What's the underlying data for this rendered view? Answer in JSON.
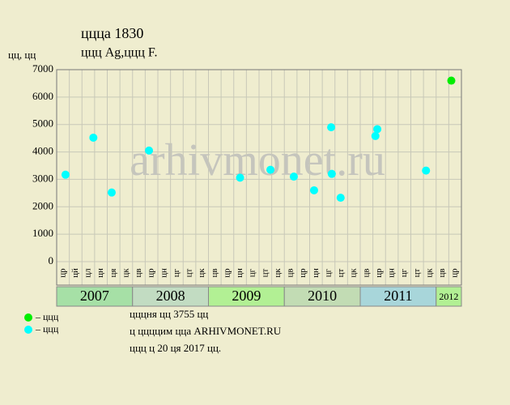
{
  "chart_data": {
    "type": "scatter",
    "title": "цццa 1830",
    "subtitle": "ццц Ag,ццц F.",
    "y_label": "цц, цц",
    "watermark": "arhivmonet.ru",
    "notes": [
      "цццня цц 3755 цц",
      "ц ццццим цца ARHIVMONET.RU",
      "ццц ц 20 ця 2017 цц."
    ],
    "x_groups": [
      {
        "label": "2007",
        "color": "#a6e0a6",
        "categories": [
          "цр",
          "цй",
          "цл",
          "цн",
          "ця",
          "цк"
        ]
      },
      {
        "label": "2008",
        "color": "#c2dcc2",
        "categories": [
          "цв",
          "цр",
          "цн",
          "цг",
          "цт",
          "цк"
        ]
      },
      {
        "label": "2009",
        "color": "#b2f094",
        "categories": [
          "цв",
          "цр",
          "цн",
          "цг",
          "цт",
          "цк"
        ]
      },
      {
        "label": "2010",
        "color": "#c2dcb4",
        "categories": [
          "цв",
          "цр",
          "цн",
          "цг",
          "цт",
          "цк"
        ]
      },
      {
        "label": "2011",
        "color": "#a8d6da",
        "categories": [
          "цв",
          "цр",
          "цн",
          "цг",
          "цт",
          "цк"
        ]
      },
      {
        "label": "2012",
        "color": "#b2f094",
        "categories": [
          "цв",
          "цр"
        ]
      }
    ],
    "xlim": [
      0,
      32
    ],
    "ylim": [
      0,
      7000
    ],
    "yticks": [
      0,
      1000,
      2000,
      3000,
      4000,
      5000,
      6000,
      7000
    ],
    "grid": true,
    "series": [
      {
        "name": "– ццц",
        "color": "#00ee00",
        "x": [
          31.2
        ],
        "values": [
          6600
        ]
      },
      {
        "name": "– ццц",
        "color": "#00ffff",
        "x": [
          0.7,
          2.9,
          4.35,
          7.3,
          14.5,
          16.9,
          18.75,
          20.35,
          21.7,
          21.75,
          22.45,
          25.2,
          25.35,
          29.2
        ],
        "values": [
          3170,
          4520,
          2520,
          4050,
          3060,
          3350,
          3100,
          2600,
          4900,
          3200,
          2330,
          4580,
          4830,
          3320
        ]
      }
    ]
  }
}
